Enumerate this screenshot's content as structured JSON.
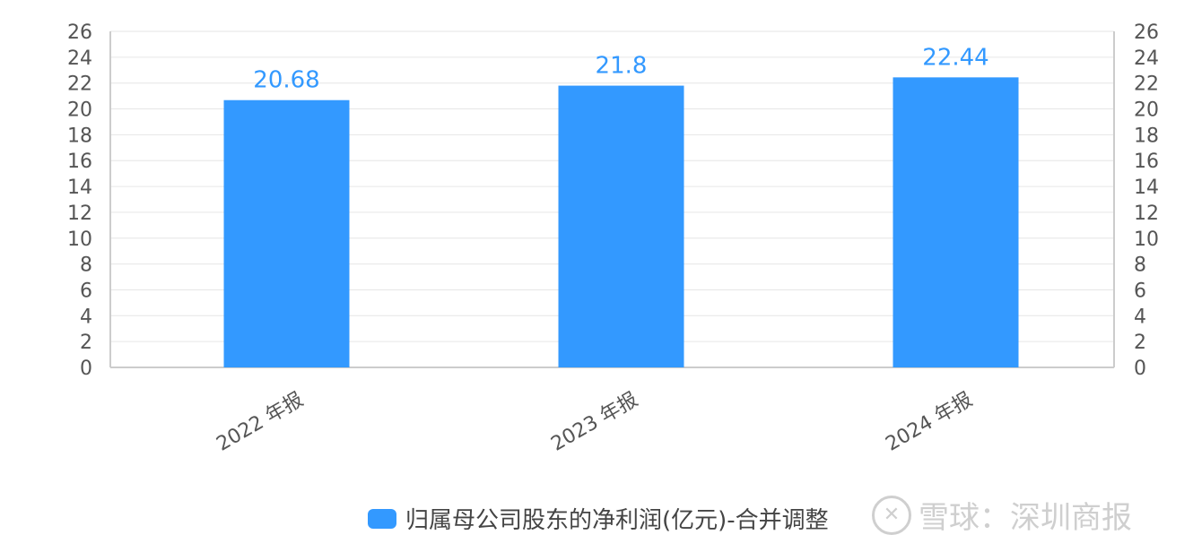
{
  "chart_data": {
    "type": "bar",
    "categories": [
      "2022 年报",
      "2023 年报",
      "2024 年报"
    ],
    "series": [
      {
        "name": "归属母公司股东的净利润(亿元)-合并调整",
        "values": [
          20.68,
          21.8,
          22.44
        ],
        "color": "#3399ff"
      }
    ],
    "data_labels": [
      "20.68",
      "21.8",
      "22.44"
    ],
    "ylim": [
      0,
      26
    ],
    "yticks": [
      0,
      2,
      4,
      6,
      8,
      10,
      12,
      14,
      16,
      18,
      20,
      22,
      24,
      26
    ],
    "y_axes": "left-and-right",
    "grid": true,
    "legend": "bottom"
  },
  "legend": {
    "label": "归属母公司股东的净利润(亿元)-合并调整"
  },
  "watermark": {
    "icon": "snowball-logo-icon",
    "text": "雪球：深圳商报"
  }
}
